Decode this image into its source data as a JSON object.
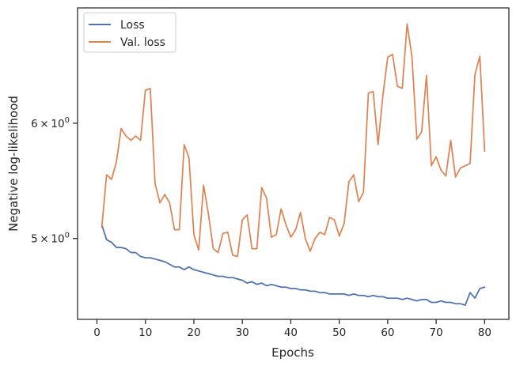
{
  "chart_data": {
    "type": "line",
    "xlabel": "Epochs",
    "ylabel": "Negative log-likelihood",
    "yscale": "log",
    "xlim": [
      -4,
      85
    ],
    "ylim": [
      4.4,
      7.2
    ],
    "grid": false,
    "legend_position": "top-left",
    "xticks": [
      0,
      10,
      20,
      30,
      40,
      50,
      60,
      70,
      80
    ],
    "xtick_labels": [
      "0",
      "10",
      "20",
      "30",
      "40",
      "50",
      "60",
      "70",
      "80"
    ],
    "yticks": [
      5,
      6
    ],
    "ytick_labels": [
      {
        "base": "5",
        "times": "×",
        "exp_base": "10",
        "exp": "0"
      },
      {
        "base": "6",
        "times": "×",
        "exp_base": "10",
        "exp": "0"
      }
    ],
    "x": [
      1,
      2,
      3,
      4,
      5,
      6,
      7,
      8,
      9,
      10,
      11,
      12,
      13,
      14,
      15,
      16,
      17,
      18,
      19,
      20,
      21,
      22,
      23,
      24,
      25,
      26,
      27,
      28,
      29,
      30,
      31,
      32,
      33,
      34,
      35,
      36,
      37,
      38,
      39,
      40,
      41,
      42,
      43,
      44,
      45,
      46,
      47,
      48,
      49,
      50,
      51,
      52,
      53,
      54,
      55,
      56,
      57,
      58,
      59,
      60,
      61,
      62,
      63,
      64,
      65,
      66,
      67,
      68,
      69,
      70,
      71,
      72,
      73,
      74,
      75,
      76,
      77,
      78,
      79,
      80
    ],
    "series": [
      {
        "name": "Loss",
        "color": "#4c72b0",
        "values": [
          5.11,
          4.99,
          4.97,
          4.93,
          4.93,
          4.92,
          4.89,
          4.89,
          4.86,
          4.85,
          4.85,
          4.84,
          4.83,
          4.82,
          4.8,
          4.78,
          4.78,
          4.76,
          4.78,
          4.76,
          4.75,
          4.74,
          4.73,
          4.72,
          4.71,
          4.71,
          4.7,
          4.7,
          4.69,
          4.68,
          4.66,
          4.67,
          4.65,
          4.66,
          4.64,
          4.65,
          4.64,
          4.63,
          4.63,
          4.62,
          4.62,
          4.61,
          4.61,
          4.6,
          4.6,
          4.59,
          4.59,
          4.58,
          4.58,
          4.58,
          4.58,
          4.57,
          4.58,
          4.57,
          4.57,
          4.56,
          4.57,
          4.56,
          4.56,
          4.55,
          4.55,
          4.55,
          4.54,
          4.55,
          4.54,
          4.53,
          4.54,
          4.54,
          4.52,
          4.52,
          4.53,
          4.52,
          4.52,
          4.51,
          4.51,
          4.5,
          4.59,
          4.55,
          4.62,
          4.63
        ]
      },
      {
        "name": "Val. loss",
        "color": "#dd8452",
        "values": [
          5.09,
          5.53,
          5.49,
          5.64,
          5.95,
          5.88,
          5.84,
          5.88,
          5.84,
          6.32,
          6.34,
          5.45,
          5.29,
          5.36,
          5.29,
          5.07,
          5.07,
          5.8,
          5.68,
          5.03,
          4.91,
          5.44,
          5.2,
          4.92,
          4.89,
          5.04,
          5.05,
          4.87,
          4.86,
          5.15,
          5.19,
          4.92,
          4.92,
          5.42,
          5.33,
          5.01,
          5.03,
          5.24,
          5.11,
          5.01,
          5.07,
          5.21,
          5.0,
          4.9,
          5.0,
          5.05,
          5.03,
          5.17,
          5.15,
          5.02,
          5.12,
          5.47,
          5.53,
          5.3,
          5.38,
          6.29,
          6.31,
          5.8,
          6.27,
          6.66,
          6.69,
          6.36,
          6.34,
          7.02,
          6.67,
          5.85,
          5.92,
          6.47,
          5.61,
          5.69,
          5.57,
          5.52,
          5.84,
          5.51,
          5.59,
          5.61,
          5.63,
          6.48,
          6.67,
          5.74
        ]
      }
    ]
  }
}
